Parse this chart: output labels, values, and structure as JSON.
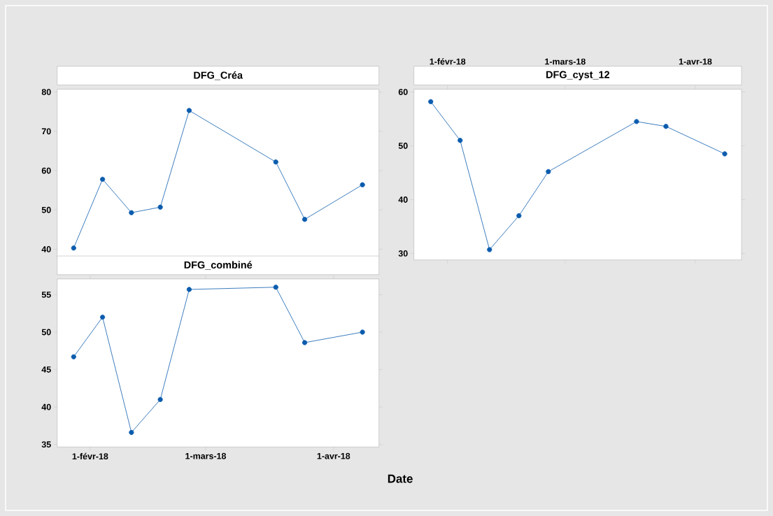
{
  "chart_data": [
    {
      "type": "line",
      "title": "DFG_Créa",
      "color": "#0b5cad",
      "marker": "circle",
      "tick_labels": "y",
      "x": [
        "2018-01-28",
        "2018-02-04",
        "2018-02-11",
        "2018-02-18",
        "2018-02-25",
        "2018-03-18",
        "2018-03-25",
        "2018-04-08"
      ],
      "values": [
        40.3,
        57.8,
        49.3,
        50.7,
        75.3,
        62.2,
        47.6,
        56.4
      ],
      "xlim": [
        "2018-01-24",
        "2018-04-12"
      ],
      "ylim": [
        38,
        80.7
      ],
      "yticks": [
        40,
        50,
        60,
        70,
        80
      ]
    },
    {
      "type": "line",
      "title": "DFG_combiné",
      "xlabel": "Date",
      "color": "#0b5cad",
      "marker": "circle",
      "x": [
        "2018-01-28",
        "2018-02-04",
        "2018-02-11",
        "2018-02-18",
        "2018-02-25",
        "2018-03-18",
        "2018-03-25",
        "2018-04-08"
      ],
      "values": [
        46.7,
        52.0,
        36.6,
        41.0,
        55.7,
        56.0,
        48.6,
        50.0
      ],
      "xlim": [
        "2018-01-24",
        "2018-04-12"
      ],
      "ylim": [
        34.66,
        57.1
      ],
      "yticks": [
        35,
        40,
        45,
        50,
        55
      ],
      "xticks": [
        {
          "value": "2018-02-01",
          "label": "1-févr-18"
        },
        {
          "value": "2018-03-01",
          "label": "1-mars-18"
        },
        {
          "value": "2018-04-01",
          "label": "1-avr-18"
        }
      ]
    },
    {
      "type": "line",
      "title": "DFG_cyst_12",
      "color": "#0b5cad",
      "marker": "circle",
      "x": [
        "2018-01-28",
        "2018-02-04",
        "2018-02-11",
        "2018-02-18",
        "2018-02-25",
        "2018-03-18",
        "2018-03-25",
        "2018-04-08"
      ],
      "values": [
        58.2,
        51.0,
        30.7,
        37.0,
        45.2,
        54.5,
        53.6,
        48.5
      ],
      "xlim": [
        "2018-01-24",
        "2018-04-12"
      ],
      "ylim": [
        28.8,
        60.5
      ],
      "yticks": [
        30,
        40,
        50,
        60
      ],
      "xticks": [
        {
          "value": "2018-02-01",
          "label": "1-févr-18"
        },
        {
          "value": "2018-03-01",
          "label": "1-mars-18"
        },
        {
          "value": "2018-04-01",
          "label": "1-avr-18"
        }
      ]
    }
  ]
}
